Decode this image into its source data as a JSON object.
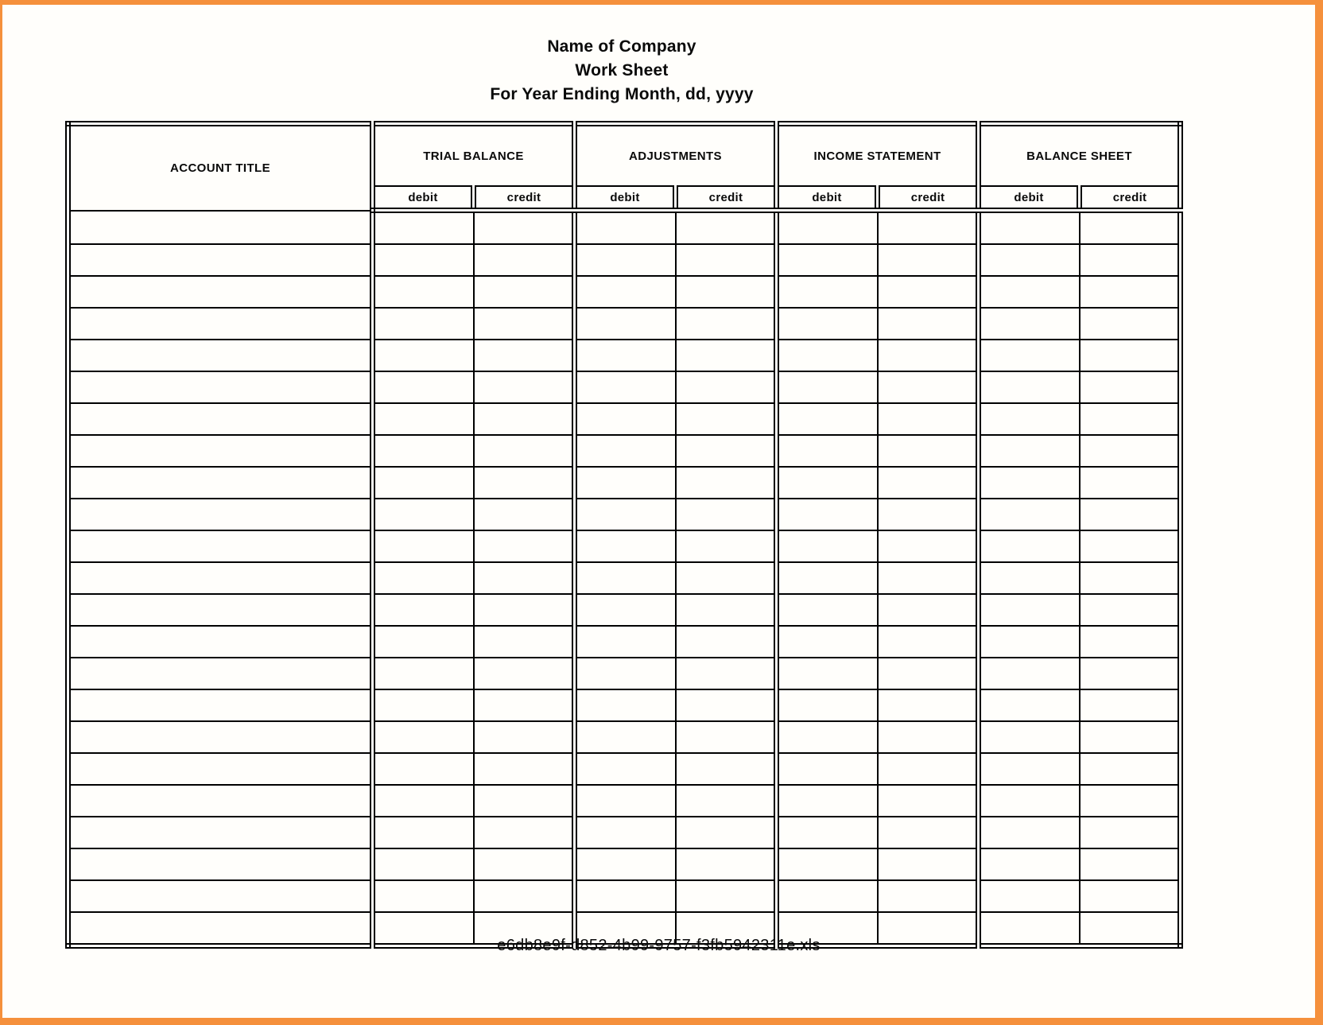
{
  "title": {
    "company": "Name of Company",
    "sheet": "Work Sheet",
    "period": "For Year Ending Month, dd, yyyy"
  },
  "table": {
    "account_title_header": "ACCOUNT TITLE",
    "sections": [
      {
        "label": "TRIAL BALANCE",
        "debit_label": "debit",
        "credit_label": "credit"
      },
      {
        "label": "ADJUSTMENTS",
        "debit_label": "debit",
        "credit_label": "credit"
      },
      {
        "label": "INCOME STATEMENT",
        "debit_label": "debit",
        "credit_label": "credit"
      },
      {
        "label": "BALANCE SHEET",
        "debit_label": "debit",
        "credit_label": "credit"
      }
    ],
    "body_row_count": 23,
    "body_cells_empty": true
  },
  "footer": {
    "filename": "e6db8e9f-d852-4b99-9757-f3fb5942311e.xls"
  },
  "colors": {
    "frame_orange": "#f5903c",
    "page_background": "#fffefb",
    "grid_line": "#000000",
    "text": "#0a0a0a"
  }
}
